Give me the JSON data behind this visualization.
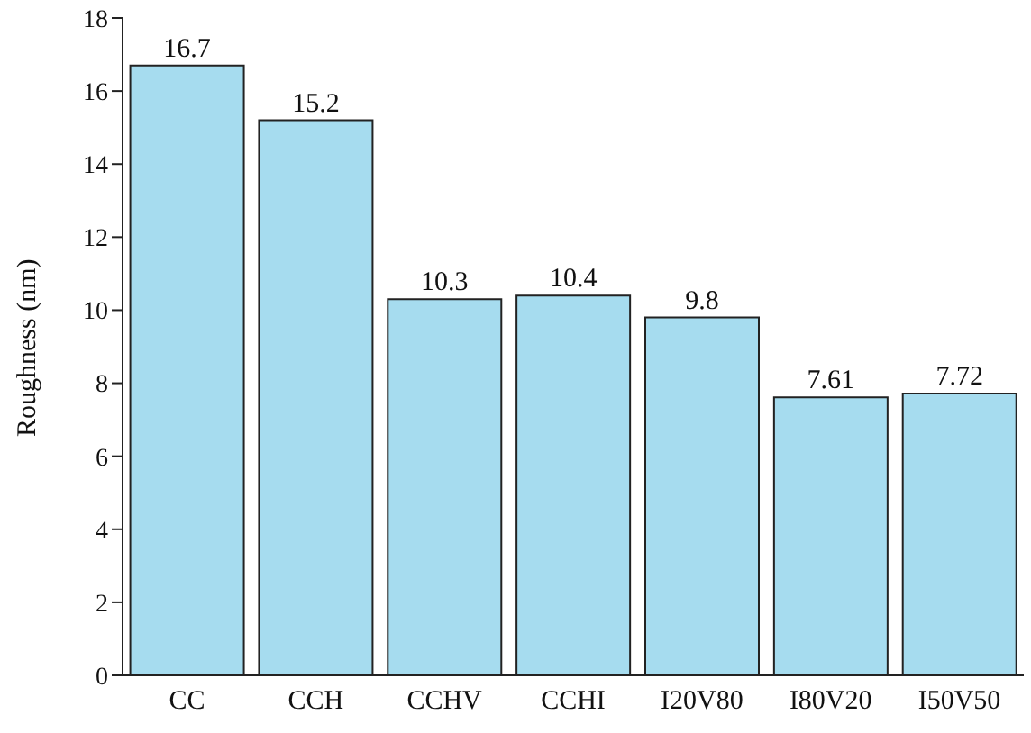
{
  "chart_data": {
    "type": "bar",
    "ylabel": "Roughness (nm)",
    "categories": [
      "CC",
      "CCH",
      "CCHV",
      "CCHI",
      "I20V80",
      "I80V20",
      "I50V50"
    ],
    "values": [
      16.7,
      15.2,
      10.3,
      10.4,
      9.8,
      7.61,
      7.72
    ],
    "color": "#a6dcef",
    "ylim": [
      0,
      18
    ],
    "yticks": [
      0,
      2,
      4,
      6,
      8,
      10,
      12,
      14,
      16,
      18
    ],
    "data_labels": true,
    "grid": false,
    "legend": false
  }
}
